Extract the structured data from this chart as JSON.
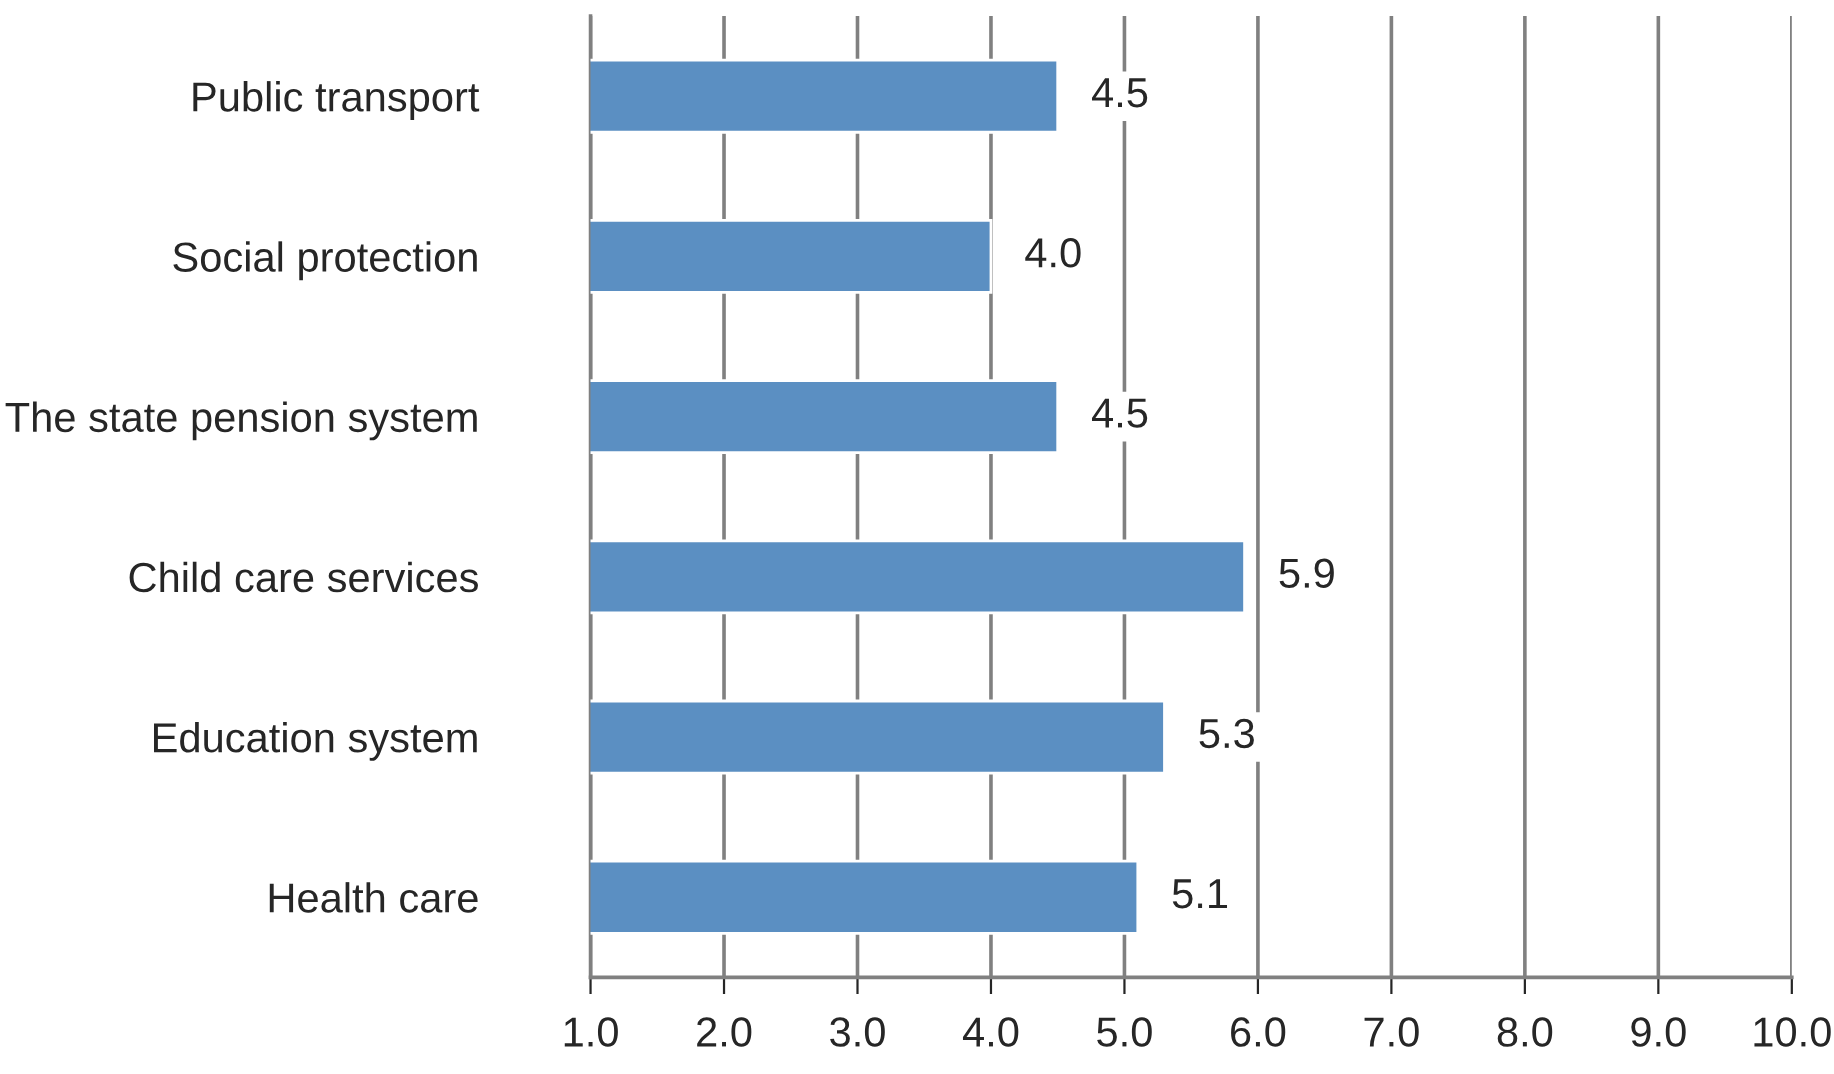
{
  "chart_data": {
    "type": "bar",
    "orientation": "horizontal",
    "categories": [
      "Public transport",
      "Social protection",
      "The state pension system",
      "Child care services",
      "Education system",
      "Health care"
    ],
    "values": [
      4.5,
      4.0,
      4.5,
      5.9,
      5.3,
      5.1
    ],
    "color": "#5b8fc2",
    "xlim": [
      1,
      10
    ],
    "xticks": [
      {
        "value": 1,
        "label": "1.0"
      },
      {
        "value": 2,
        "label": "2.0"
      },
      {
        "value": 3,
        "label": "3.0"
      },
      {
        "value": 4,
        "label": "4.0"
      },
      {
        "value": 5,
        "label": "5.0"
      },
      {
        "value": 6,
        "label": "6.0"
      },
      {
        "value": 7,
        "label": "7.0"
      },
      {
        "value": 8,
        "label": "8.0"
      },
      {
        "value": 9,
        "label": "9.0"
      },
      {
        "value": 10,
        "label": "10.0"
      }
    ],
    "value_labels": [
      "4.5",
      "4.0",
      "4.5",
      "5.9",
      "5.3",
      "5.1"
    ],
    "grid": "x"
  }
}
